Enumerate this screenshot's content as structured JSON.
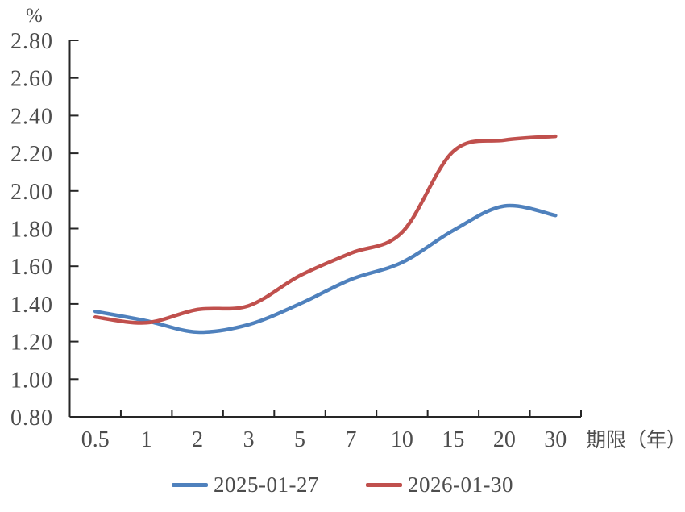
{
  "chart_data": {
    "type": "line",
    "title": "",
    "y_unit": "%",
    "x_axis_title": "期限（年）",
    "xlabel": "期限（年）",
    "ylabel": "%",
    "categories": [
      "0.5",
      "1",
      "2",
      "3",
      "5",
      "7",
      "10",
      "15",
      "20",
      "30"
    ],
    "series": [
      {
        "name": "2025-01-27",
        "color": "#4F81BD",
        "values": [
          1.36,
          1.31,
          1.25,
          1.29,
          1.4,
          1.53,
          1.62,
          1.79,
          1.92,
          1.87
        ]
      },
      {
        "name": "2026-01-30",
        "color": "#C0504D",
        "values": [
          1.33,
          1.3,
          1.37,
          1.39,
          1.55,
          1.67,
          1.78,
          2.21,
          2.27,
          2.29
        ]
      }
    ],
    "ylim": [
      0.8,
      2.8
    ],
    "y_tick_step": 0.2,
    "y_tick_labels": [
      "0.80",
      "1.00",
      "1.20",
      "1.40",
      "1.60",
      "1.80",
      "2.00",
      "2.20",
      "2.40",
      "2.60",
      "2.80"
    ],
    "grid": false,
    "smooth": true,
    "legend_position": "bottom"
  },
  "style": {
    "axis_color": "#262626",
    "label_color": "#4d4d4d",
    "background": "#ffffff"
  }
}
